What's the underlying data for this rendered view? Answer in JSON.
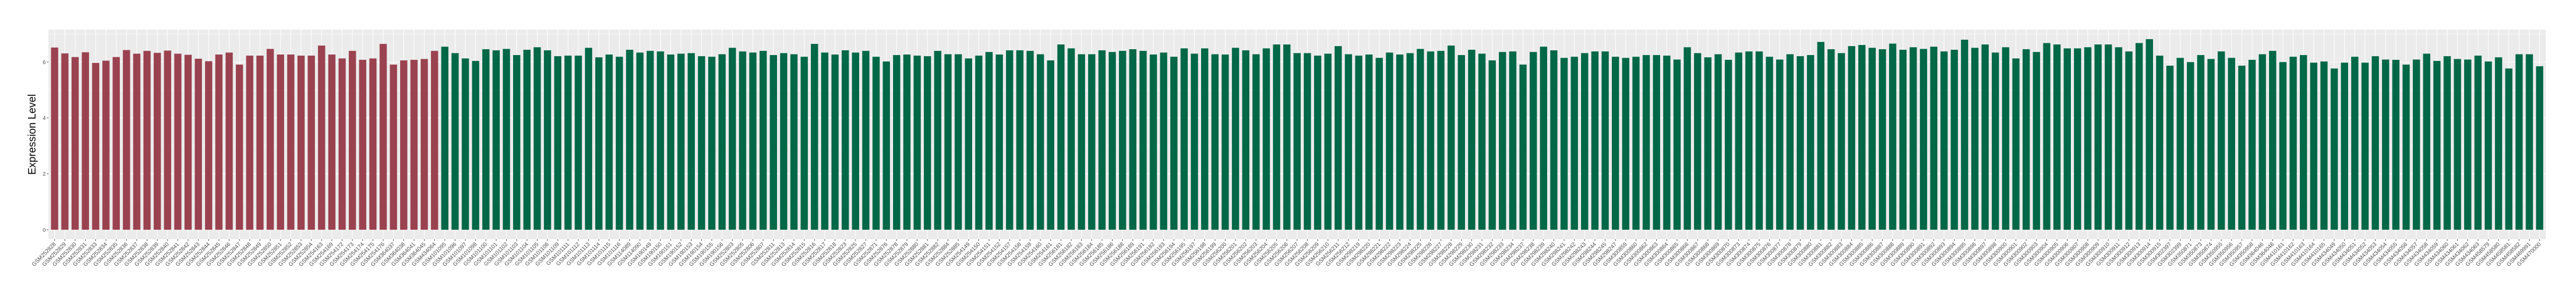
{
  "chart_data": {
    "type": "bar",
    "title": "",
    "xlabel": "",
    "ylabel": "Expression Level",
    "ylim": [
      -0.34,
      7.16
    ],
    "yticks": [
      0,
      2,
      4,
      6
    ],
    "grid": true,
    "legend": "none",
    "panel_background": "#EBEBEB",
    "grid_color": "#FFFFFF",
    "series": [
      {
        "color": "#9B4250",
        "categories": [
          "GSM252828",
          "GSM252829",
          "GSM252830",
          "GSM252831",
          "GSM252833",
          "GSM252834",
          "GSM252835",
          "GSM252836",
          "GSM252837",
          "GSM252838",
          "GSM252839",
          "GSM252840",
          "GSM252841",
          "GSM252842",
          "GSM252843",
          "GSM252844",
          "GSM252845",
          "GSM252846",
          "GSM252847",
          "GSM252848",
          "GSM252849",
          "GSM252850",
          "GSM252851",
          "GSM252852",
          "GSM252853",
          "GSM252854",
          "GSM254163",
          "GSM254169",
          "GSM254172",
          "GSM254173",
          "GSM254174",
          "GSM254175",
          "GSM254176",
          "GSM364037",
          "GSM364038",
          "GSM364041",
          "GSM364045",
          "GSM434064"
        ],
        "values": [
          6.52,
          6.31,
          6.18,
          6.35,
          5.97,
          6.05,
          6.18,
          6.43,
          6.3,
          6.4,
          6.33,
          6.41,
          6.3,
          6.26,
          6.12,
          6.03,
          6.27,
          6.34,
          5.91,
          6.23,
          6.23,
          6.47,
          6.27,
          6.27,
          6.23,
          6.23,
          6.59,
          6.27,
          6.13,
          6.4,
          6.08,
          6.13,
          6.65,
          5.91,
          6.06,
          6.08,
          6.11,
          6.4
        ]
      },
      {
        "color": "#006846",
        "categories": [
          "GSM101095",
          "GSM101096",
          "GSM101097",
          "GSM101098",
          "GSM101100",
          "GSM101101",
          "GSM101102",
          "GSM101103",
          "GSM101104",
          "GSM101105",
          "GSM101106",
          "GSM101109",
          "GSM101111",
          "GSM101112",
          "GSM101113",
          "GSM101114",
          "GSM101115",
          "GSM101116",
          "GSM114089",
          "GSM114090",
          "GSM190149",
          "GSM190150",
          "GSM190151",
          "GSM190152",
          "GSM190153",
          "GSM190154",
          "GSM190155",
          "GSM190156",
          "GSM252803",
          "GSM252805",
          "GSM252806",
          "GSM252807",
          "GSM252811",
          "GSM252813",
          "GSM252814",
          "GSM252815",
          "GSM252816",
          "GSM252817",
          "GSM252818",
          "GSM252823",
          "GSM252825",
          "GSM252827",
          "GSM252871",
          "GSM252876",
          "GSM252878",
          "GSM252879",
          "GSM252880",
          "GSM252881",
          "GSM252882",
          "GSM252884",
          "GSM252885",
          "GSM254149",
          "GSM254150",
          "GSM254151",
          "GSM254152",
          "GSM254157",
          "GSM254158",
          "GSM254159",
          "GSM254160",
          "GSM254161",
          "GSM256181",
          "GSM256182",
          "GSM256183",
          "GSM256184",
          "GSM256185",
          "GSM256186",
          "GSM256188",
          "GSM256189",
          "GSM256191",
          "GSM256192",
          "GSM256193",
          "GSM256194",
          "GSM256195",
          "GSM256197",
          "GSM256198",
          "GSM256199",
          "GSM256200",
          "GSM256201",
          "GSM256202",
          "GSM256203",
          "GSM256204",
          "GSM256205",
          "GSM256206",
          "GSM256207",
          "GSM256208",
          "GSM256209",
          "GSM256210",
          "GSM256211",
          "GSM256212",
          "GSM298219",
          "GSM298220",
          "GSM298221",
          "GSM298222",
          "GSM298223",
          "GSM298224",
          "GSM298225",
          "GSM298226",
          "GSM298227",
          "GSM298228",
          "GSM298229",
          "GSM298230",
          "GSM298231",
          "GSM298232",
          "GSM298233",
          "GSM298234",
          "GSM298237",
          "GSM298238",
          "GSM298239",
          "GSM298240",
          "GSM298241",
          "GSM298242",
          "GSM298243",
          "GSM298244",
          "GSM298245",
          "GSM298247",
          "GSM300859",
          "GSM300860",
          "GSM300862",
          "GSM300863",
          "GSM300864",
          "GSM300865",
          "GSM300866",
          "GSM300867",
          "GSM300868",
          "GSM300869",
          "GSM300870",
          "GSM300873",
          "GSM300874",
          "GSM300875",
          "GSM300876",
          "GSM300877",
          "GSM300878",
          "GSM300879",
          "GSM300880",
          "GSM300881",
          "GSM300882",
          "GSM300883",
          "GSM300884",
          "GSM300885",
          "GSM300886",
          "GSM300887",
          "GSM300888",
          "GSM300889",
          "GSM300890",
          "GSM300891",
          "GSM300892",
          "GSM300893",
          "GSM300894",
          "GSM300895",
          "GSM300896",
          "GSM300897",
          "GSM300898",
          "GSM300900",
          "GSM300901",
          "GSM300902",
          "GSM300903",
          "GSM300904",
          "GSM300905",
          "GSM300906",
          "GSM300907",
          "GSM300908",
          "GSM300909",
          "GSM300910",
          "GSM300911",
          "GSM300912",
          "GSM300913",
          "GSM300914",
          "GSM300915",
          "GSM302397",
          "GSM302399",
          "GSM350871",
          "GSM350873",
          "GSM350874",
          "GSM350955",
          "GSM350956",
          "GSM350957",
          "GSM350958",
          "GSM364046",
          "GSM364048",
          "GSM410161",
          "GSM410162",
          "GSM410163",
          "GSM410164",
          "GSM410165",
          "GSM434049",
          "GSM434050",
          "GSM434051",
          "GSM434052",
          "GSM434053",
          "GSM434054",
          "GSM434055",
          "GSM434056",
          "GSM434057",
          "GSM434058",
          "GSM434059",
          "GSM434060",
          "GSM434061",
          "GSM434062",
          "GSM434063",
          "GSM458579",
          "GSM458580",
          "GSM458581",
          "GSM458582",
          "GSM469991",
          "GSM470000"
        ],
        "values": [
          6.55,
          6.32,
          6.13,
          6.04,
          6.46,
          6.42,
          6.47,
          6.25,
          6.44,
          6.53,
          6.42,
          6.21,
          6.23,
          6.23,
          6.51,
          6.17,
          6.27,
          6.19,
          6.44,
          6.34,
          6.4,
          6.38,
          6.27,
          6.3,
          6.32,
          6.21,
          6.19,
          6.28,
          6.51,
          6.38,
          6.34,
          6.4,
          6.25,
          6.32,
          6.28,
          6.19,
          6.65,
          6.34,
          6.27,
          6.42,
          6.34,
          6.4,
          6.19,
          6.02,
          6.25,
          6.27,
          6.23,
          6.21,
          6.4,
          6.28,
          6.28,
          6.13,
          6.23,
          6.36,
          6.27,
          6.42,
          6.42,
          6.4,
          6.28,
          6.06,
          6.63,
          6.49,
          6.28,
          6.28,
          6.42,
          6.36,
          6.4,
          6.46,
          6.4,
          6.27,
          6.34,
          6.19,
          6.49,
          6.3,
          6.49,
          6.28,
          6.27,
          6.51,
          6.42,
          6.28,
          6.49,
          6.63,
          6.63,
          6.32,
          6.32,
          6.23,
          6.3,
          6.57,
          6.28,
          6.23,
          6.27,
          6.15,
          6.34,
          6.27,
          6.32,
          6.47,
          6.38,
          6.4,
          6.59,
          6.25,
          6.44,
          6.3,
          6.06,
          6.36,
          6.38,
          5.91,
          6.36,
          6.55,
          6.42,
          6.15,
          6.19,
          6.32,
          6.38,
          6.38,
          6.19,
          6.15,
          6.19,
          6.25,
          6.25,
          6.23,
          6.09,
          6.53,
          6.32,
          6.17,
          6.28,
          6.08,
          6.34,
          6.38,
          6.38,
          6.19,
          6.09,
          6.28,
          6.21,
          6.25,
          6.72,
          6.46,
          6.32,
          6.57,
          6.61,
          6.51,
          6.46,
          6.66,
          6.44,
          6.53,
          6.47,
          6.55,
          6.38,
          6.44,
          6.8,
          6.51,
          6.63,
          6.34,
          6.53,
          6.13,
          6.46,
          6.36,
          6.68,
          6.63,
          6.49,
          6.49,
          6.53,
          6.63,
          6.63,
          6.53,
          6.38,
          6.68,
          6.82,
          6.23,
          5.87,
          6.15,
          6.0,
          6.25,
          6.11,
          6.38,
          6.15,
          5.87,
          6.08,
          6.28,
          6.4,
          6.0,
          6.19,
          6.25,
          5.98,
          6.02,
          5.77,
          5.98,
          6.19,
          5.98,
          6.21,
          6.09,
          6.08,
          5.91,
          6.09,
          6.3,
          6.04,
          6.21,
          6.11,
          6.09,
          6.23,
          6.02,
          6.17,
          5.77,
          6.28,
          6.28,
          5.85
        ]
      }
    ]
  }
}
